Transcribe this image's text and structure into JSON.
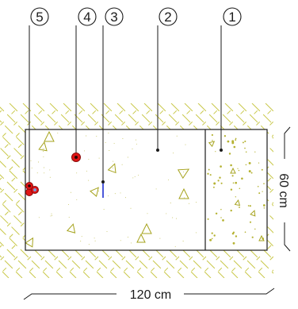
{
  "callouts": [
    {
      "id": "callout-1",
      "label": "1"
    },
    {
      "id": "callout-2",
      "label": "2"
    },
    {
      "id": "callout-3",
      "label": "3"
    },
    {
      "id": "callout-4",
      "label": "4"
    },
    {
      "id": "callout-5",
      "label": "5"
    }
  ],
  "dimensions": {
    "width_label": "120 cm",
    "height_label": "60 cm"
  },
  "colors": {
    "hatch": "#c9c84a",
    "aggregate": "#a6a31e",
    "sensor": "#e01515",
    "sensor_probe": "#1f2fd0",
    "outline": "#1a1a1a"
  }
}
